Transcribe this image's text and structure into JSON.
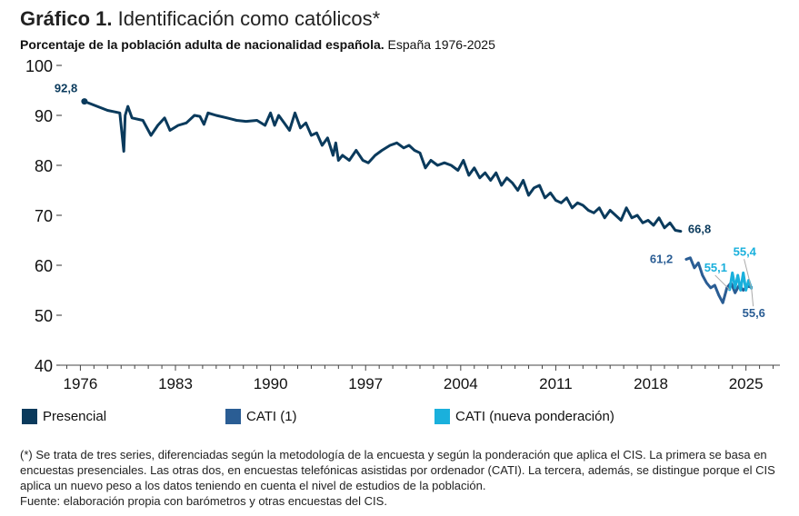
{
  "header": {
    "title_bold": "Gráfico 1.",
    "title_rest": " Identificación como católicos*",
    "subtitle_bold": "Porcentaje de la población adulta de nacionalidad española.",
    "subtitle_rest": " España 1976-2025"
  },
  "legend": [
    {
      "label": "Presencial",
      "color": "#0a3a5c"
    },
    {
      "label": "CATI (1)",
      "color": "#2a5d94"
    },
    {
      "label": "CATI (nueva ponderación)",
      "color": "#1ab0dc"
    }
  ],
  "footnote": {
    "text": "(*) Se trata de tres series, diferenciadas según la metodología de la encuesta y según la ponderación que aplica el CIS. La primera se basa en encuestas presenciales. Las otras dos, en encuestas telefónicas asistidas por ordenador (CATI). La tercera, además, se distingue porque el CIS aplica un nuevo peso a los datos teniendo en cuenta el nivel de estudios de la población.",
    "source": "Fuente: elaboración propia con barómetros y otras encuestas del CIS."
  },
  "chart_data": {
    "type": "line",
    "title": "Gráfico 1. Identificación como católicos*",
    "subtitle": "Porcentaje de la población adulta de nacionalidad española. España 1976-2025",
    "xlabel": "",
    "ylabel": "",
    "xlim": [
      1974.5,
      2027.5
    ],
    "ylim": [
      40,
      100
    ],
    "x_ticks": [
      1976,
      1983,
      1990,
      1997,
      2004,
      2011,
      2018,
      2025
    ],
    "y_ticks": [
      40,
      50,
      60,
      70,
      80,
      90,
      100
    ],
    "grid": false,
    "legend_position": "bottom",
    "series": [
      {
        "name": "Presencial",
        "color": "#0a3a5c",
        "x": [
          1976.3,
          1978.0,
          1978.9,
          1979.2,
          1979.3,
          1979.5,
          1979.8,
          1980.6,
          1981.2,
          1981.7,
          1982.2,
          1982.6,
          1983.2,
          1983.8,
          1984.4,
          1984.8,
          1985.1,
          1985.4,
          1986.0,
          1986.8,
          1987.5,
          1988.2,
          1989.0,
          1989.6,
          1990.0,
          1990.3,
          1990.6,
          1991.0,
          1991.4,
          1991.8,
          1992.2,
          1992.6,
          1993.0,
          1993.4,
          1993.8,
          1994.2,
          1994.6,
          1994.8,
          1995.0,
          1995.3,
          1995.8,
          1996.3,
          1996.8,
          1997.2,
          1997.7,
          1998.2,
          1998.8,
          1999.3,
          1999.8,
          2000.2,
          2000.6,
          2001.0,
          2001.4,
          2001.8,
          2002.3,
          2002.8,
          2003.3,
          2003.8,
          2004.2,
          2004.6,
          2005.0,
          2005.4,
          2005.8,
          2006.2,
          2006.6,
          2007.0,
          2007.4,
          2007.8,
          2008.2,
          2008.6,
          2009.0,
          2009.4,
          2009.8,
          2010.2,
          2010.6,
          2011.0,
          2011.4,
          2011.8,
          2012.2,
          2012.6,
          2013.0,
          2013.4,
          2013.8,
          2014.2,
          2014.6,
          2015.0,
          2015.4,
          2015.8,
          2016.2,
          2016.6,
          2017.0,
          2017.4,
          2017.8,
          2018.2,
          2018.6,
          2019.0,
          2019.4,
          2019.8,
          2020.2
        ],
        "values": [
          92.8,
          91.0,
          90.5,
          82.8,
          90.0,
          91.8,
          89.5,
          89.0,
          86.0,
          88.0,
          89.5,
          87.0,
          88.0,
          88.5,
          90.0,
          89.8,
          88.2,
          90.5,
          90.0,
          89.5,
          89.0,
          88.8,
          89.0,
          88.0,
          90.5,
          88.0,
          90.0,
          88.5,
          87.0,
          90.5,
          87.5,
          88.5,
          86.0,
          86.5,
          84.0,
          85.5,
          82.0,
          84.5,
          81.0,
          82.0,
          81.0,
          83.0,
          81.0,
          80.5,
          82.0,
          83.0,
          84.0,
          84.5,
          83.5,
          84.0,
          83.0,
          82.5,
          79.5,
          81.0,
          80.0,
          80.5,
          80.0,
          79.0,
          81.0,
          78.0,
          79.5,
          77.5,
          78.5,
          77.0,
          78.5,
          76.0,
          77.5,
          76.5,
          75.0,
          77.0,
          74.0,
          75.5,
          76.0,
          73.5,
          74.5,
          73.0,
          72.5,
          73.5,
          71.5,
          72.5,
          72.0,
          71.0,
          70.5,
          71.5,
          69.5,
          71.0,
          70.0,
          69.0,
          71.5,
          69.5,
          70.0,
          68.5,
          69.0,
          68.0,
          69.5,
          67.5,
          68.5,
          67.0,
          66.8
        ]
      },
      {
        "name": "CATI (1)",
        "color": "#2a5d94",
        "x": [
          2020.6,
          2020.9,
          2021.2,
          2021.5,
          2021.8,
          2022.1,
          2022.4,
          2022.7,
          2023.0,
          2023.3,
          2023.6,
          2023.9,
          2024.2,
          2024.5,
          2024.8,
          2025.1,
          2025.4
        ],
        "values": [
          61.2,
          61.5,
          59.5,
          60.5,
          58.0,
          56.5,
          55.5,
          56.0,
          54.0,
          52.5,
          55.5,
          56.5,
          54.5,
          56.0,
          55.0,
          55.8,
          55.6
        ]
      },
      {
        "name": "CATI (nueva ponderación)",
        "color": "#1ab0dc",
        "x": [
          2023.8,
          2024.0,
          2024.2,
          2024.4,
          2024.6,
          2024.8,
          2025.0,
          2025.2,
          2025.4
        ],
        "values": [
          55.1,
          58.5,
          55.5,
          58.0,
          55.0,
          58.5,
          55.0,
          57.0,
          55.4
        ]
      }
    ],
    "annotations": [
      {
        "text": "92,8",
        "x": 1976.3,
        "y": 92.8,
        "color": "#0a3a5c"
      },
      {
        "text": "66,8",
        "x": 2020.2,
        "y": 66.8,
        "color": "#0a3a5c"
      },
      {
        "text": "61,2",
        "x": 2020.6,
        "y": 61.2,
        "color": "#2a5d94"
      },
      {
        "text": "55,6",
        "x": 2025.4,
        "y": 55.6,
        "color": "#2a5d94"
      },
      {
        "text": "55,1",
        "x": 2023.8,
        "y": 55.1,
        "color": "#1ab0dc"
      },
      {
        "text": "55,4",
        "x": 2025.4,
        "y": 55.4,
        "color": "#1ab0dc"
      }
    ]
  }
}
